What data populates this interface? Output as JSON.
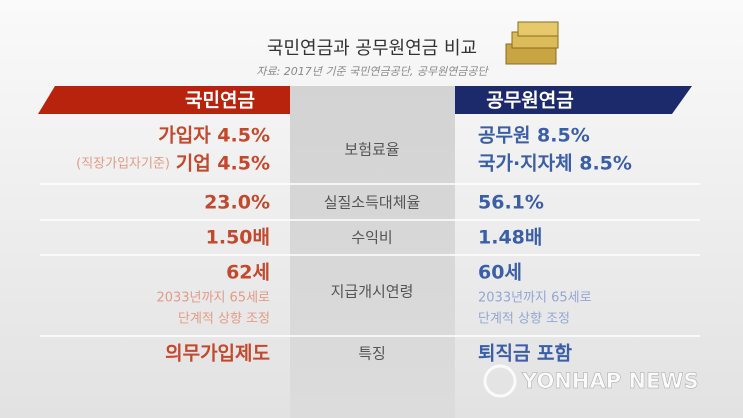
{
  "title": "국민연금과 공무원연금 비교",
  "source": "자료: 2017년 기준 국민연금공단, 공무원연금공단",
  "header": {
    "left": "국민연금",
    "right": "공무원연금"
  },
  "rows": [
    {
      "label": "보험료율",
      "left": {
        "line1": "가입자 4.5%",
        "note": "(직장가입자기준)",
        "line2": "기업 4.5%"
      },
      "right": {
        "line1": "공무원 8.5%",
        "line2": "국가·지자체 8.5%"
      }
    },
    {
      "label": "실질소득대체율",
      "left": "23.0%",
      "right": "56.1%"
    },
    {
      "label": "수익비",
      "left": "1.50배",
      "right": "1.48배"
    },
    {
      "label": "지급개시연령",
      "left": {
        "main": "62세",
        "sub1": "2033년까지 65세로",
        "sub2": "단계적 상향 조정"
      },
      "right": {
        "main": "60세",
        "sub1": "2033년까지 65세로",
        "sub2": "단계적 상향 조정"
      }
    },
    {
      "label": "특징",
      "left": "의무가입제도",
      "right": "퇴직금 포함"
    }
  ],
  "watermark": "YONHAP NEWS"
}
